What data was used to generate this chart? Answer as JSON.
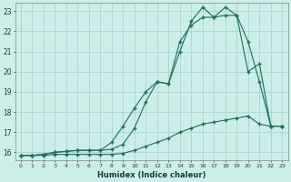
{
  "xlabel": "Humidex (Indice chaleur)",
  "bg_color": "#cceee8",
  "grid_color": "#aad4ce",
  "line_color": "#1a6e64",
  "xlim": [
    -0.5,
    23.5
  ],
  "ylim": [
    15.6,
    23.4
  ],
  "xticks": [
    0,
    1,
    2,
    3,
    4,
    5,
    6,
    7,
    8,
    9,
    10,
    11,
    12,
    13,
    14,
    15,
    16,
    17,
    18,
    19,
    20,
    21,
    22,
    23
  ],
  "yticks": [
    16,
    17,
    18,
    19,
    20,
    21,
    22,
    23
  ],
  "c1x": [
    0,
    1,
    2,
    3,
    4,
    5,
    6,
    7,
    8,
    9,
    10,
    11,
    12,
    13,
    14,
    15,
    16,
    17,
    18,
    19,
    20,
    21,
    22,
    23
  ],
  "c1y": [
    15.85,
    15.85,
    15.9,
    16.0,
    16.05,
    16.1,
    16.1,
    16.1,
    16.15,
    16.4,
    17.2,
    18.5,
    19.5,
    19.4,
    21.0,
    22.5,
    23.2,
    22.7,
    23.2,
    22.8,
    20.0,
    20.4,
    17.3,
    17.3
  ],
  "c2x": [
    0,
    1,
    2,
    3,
    4,
    5,
    6,
    7,
    8,
    9,
    10,
    11,
    12,
    13,
    14,
    15,
    16,
    17,
    18,
    19,
    20,
    21,
    22,
    23
  ],
  "c2y": [
    15.85,
    15.85,
    15.9,
    16.0,
    16.05,
    16.1,
    16.1,
    16.1,
    16.5,
    17.3,
    18.2,
    19.0,
    19.5,
    19.4,
    21.5,
    22.3,
    22.7,
    22.7,
    22.8,
    22.8,
    21.5,
    19.5,
    17.3,
    17.3
  ],
  "c3x": [
    0,
    1,
    2,
    3,
    4,
    5,
    6,
    7,
    8,
    9,
    10,
    11,
    12,
    13,
    14,
    15,
    16,
    17,
    18,
    19,
    20,
    21,
    22,
    23
  ],
  "c3y": [
    15.85,
    15.85,
    15.85,
    15.9,
    15.9,
    15.9,
    15.9,
    15.9,
    15.9,
    15.95,
    16.1,
    16.3,
    16.5,
    16.7,
    17.0,
    17.2,
    17.4,
    17.5,
    17.6,
    17.7,
    17.8,
    17.4,
    17.3,
    17.3
  ]
}
